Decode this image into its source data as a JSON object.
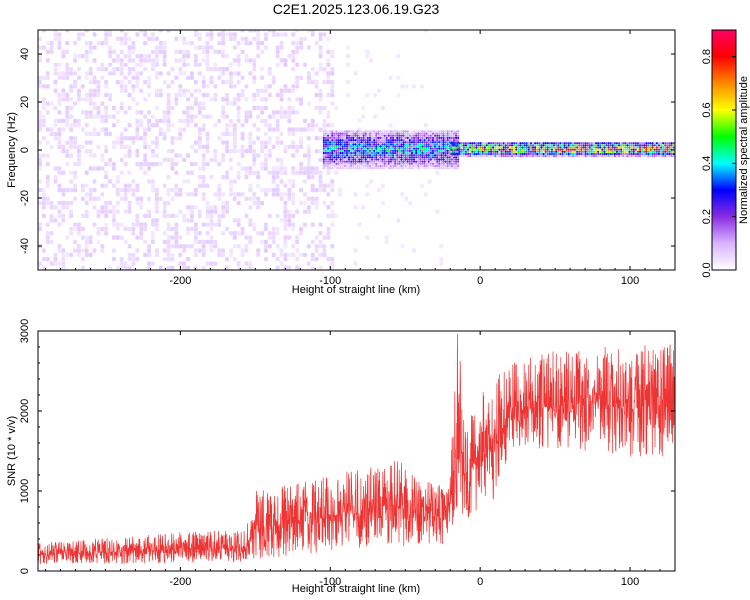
{
  "figure": {
    "title": "C2E1.2025.123.06.19.G23"
  },
  "chart_data": [
    {
      "type": "heatmap",
      "title": "C2E1.2025.123.06.19.G23",
      "xlabel": "Height of straight line (km)",
      "ylabel": "Frequency (Hz)",
      "xlim": [
        -295,
        130
      ],
      "ylim": [
        -50,
        50
      ],
      "x_ticks": [
        -200,
        -100,
        0,
        100
      ],
      "x_tick_labels": [
        "-200",
        "-100",
        "0",
        "100"
      ],
      "y_ticks": [
        -40,
        -20,
        0,
        20,
        40
      ],
      "y_tick_labels": [
        "-40",
        "-20",
        "0",
        "20",
        "40"
      ],
      "colorbar": {
        "label": "Normalized spectral amplitude",
        "range": [
          0.0,
          0.9
        ],
        "ticks": [
          0.0,
          0.2,
          0.4,
          0.6,
          0.8
        ],
        "tick_labels": [
          "0.0",
          "0.2",
          "0.4",
          "0.6",
          "0.8"
        ],
        "colors": [
          "#ffffff",
          "#d9b3ff",
          "#8a2be2",
          "#0000ff",
          "#00ffff",
          "#00ff00",
          "#ffff00",
          "#ff8800",
          "#ff0000",
          "#ff0066"
        ]
      },
      "regions": [
        {
          "x_range": [
            -295,
            -100
          ],
          "freq_range": [
            -50,
            50
          ],
          "amplitude": 0.03,
          "pattern": "broadband noise"
        },
        {
          "x_range": [
            -100,
            -20
          ],
          "freq_range": [
            -50,
            50
          ],
          "amplitude": 0.015,
          "pattern": "fading broadband noise"
        },
        {
          "x_range": [
            -105,
            -15
          ],
          "freq_range": [
            -8,
            8
          ],
          "amplitude": 0.25,
          "pattern": "emerging carrier"
        },
        {
          "x_range": [
            -20,
            130
          ],
          "freq_range": [
            -3,
            3
          ],
          "amplitude": 0.45,
          "pattern": "stable carrier at 0 Hz"
        }
      ],
      "grid": false
    },
    {
      "type": "line",
      "xlabel": "Height of straight line (km)",
      "ylabel": "SNR (10 * v/v)",
      "xlim": [
        -295,
        130
      ],
      "ylim": [
        0,
        3000
      ],
      "x_ticks": [
        -200,
        -100,
        0,
        100
      ],
      "x_tick_labels": [
        "-200",
        "-100",
        "0",
        "100"
      ],
      "y_ticks": [
        0,
        1000,
        2000,
        3000
      ],
      "y_tick_labels": [
        "0",
        "1000",
        "2000",
        "3000"
      ],
      "color": "#ee3333",
      "envelope": {
        "x": [
          -295,
          -260,
          -220,
          -190,
          -170,
          -157,
          -150,
          -120,
          -100,
          -80,
          -60,
          -40,
          -20,
          -15,
          -10,
          -5,
          0,
          10,
          20,
          40,
          60,
          80,
          100,
          120,
          130
        ],
        "min": [
          80,
          80,
          90,
          100,
          110,
          120,
          150,
          200,
          250,
          280,
          300,
          300,
          350,
          800,
          500,
          700,
          800,
          900,
          1500,
          1500,
          1500,
          1500,
          1400,
          1400,
          1400
        ],
        "max": [
          350,
          400,
          450,
          500,
          500,
          500,
          1000,
          1100,
          1200,
          1300,
          1500,
          1100,
          1200,
          3000,
          1900,
          2000,
          2200,
          2400,
          2600,
          2700,
          2800,
          2800,
          2800,
          2900,
          2800
        ]
      },
      "grid": false
    }
  ]
}
